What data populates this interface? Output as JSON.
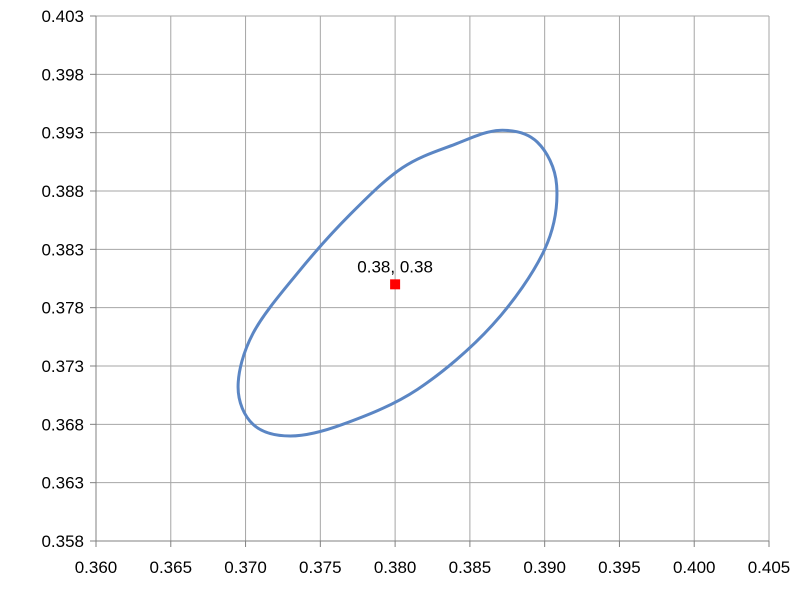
{
  "chart_data": {
    "type": "scatter",
    "title": "",
    "xlabel": "",
    "ylabel": "",
    "xlim": [
      0.36,
      0.405
    ],
    "ylim": [
      0.358,
      0.403
    ],
    "xticks": [
      "0.360",
      "0.365",
      "0.370",
      "0.375",
      "0.380",
      "0.385",
      "0.390",
      "0.395",
      "0.400",
      "0.405"
    ],
    "yticks": [
      "0.403",
      "0.398",
      "0.393",
      "0.388",
      "0.383",
      "0.378",
      "0.373",
      "0.368",
      "0.363",
      "0.358"
    ],
    "grid": true,
    "legend": "none",
    "colors": {
      "ellipse": "#5b86c4",
      "center": "#ff0000",
      "grid": "#a6a6a6",
      "axis": "#808080"
    },
    "series": [
      {
        "kind": "ellipse-outline",
        "points": [
          [
            0.3805,
            0.39
          ],
          [
            0.384,
            0.392
          ],
          [
            0.387,
            0.3932
          ],
          [
            0.3895,
            0.3922
          ],
          [
            0.3908,
            0.3885
          ],
          [
            0.39,
            0.383
          ],
          [
            0.3865,
            0.3765
          ],
          [
            0.3815,
            0.371
          ],
          [
            0.3765,
            0.368
          ],
          [
            0.373,
            0.367
          ],
          [
            0.3705,
            0.368
          ],
          [
            0.3695,
            0.3712
          ],
          [
            0.3705,
            0.3758
          ],
          [
            0.3735,
            0.381
          ],
          [
            0.377,
            0.386
          ]
        ]
      },
      {
        "kind": "center-point",
        "x": 0.38,
        "y": 0.38,
        "label": "0.38, 0.38"
      }
    ]
  }
}
